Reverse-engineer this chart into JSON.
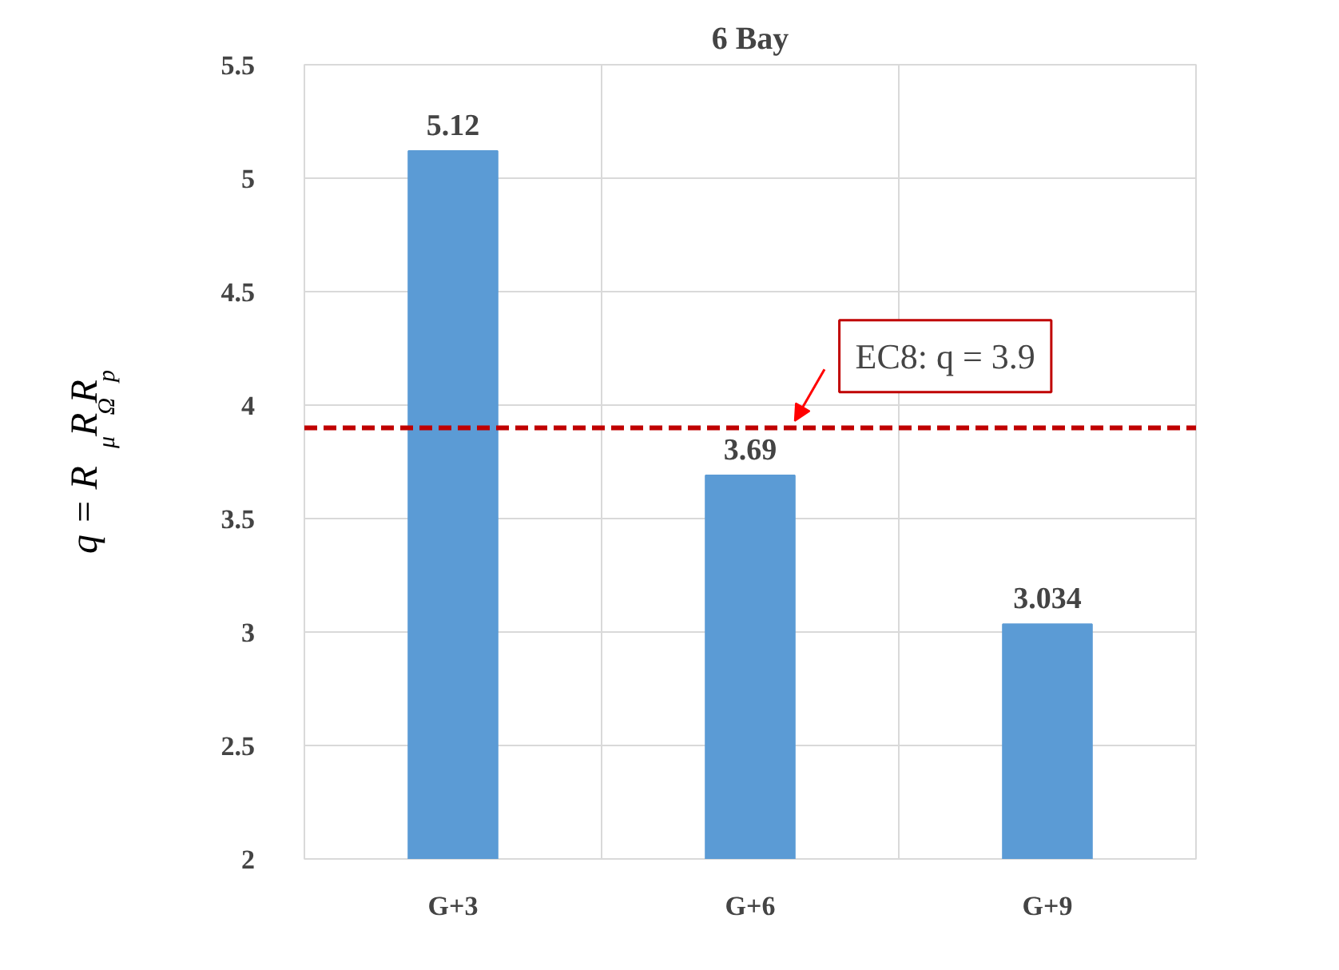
{
  "chart_data": {
    "type": "bar",
    "title": "6 Bay",
    "ylabel": "q = R$_{μ}$R$_{Ω}$R$_{p}$",
    "categories": [
      "G+3",
      "G+6",
      "G+9"
    ],
    "values": [
      5.12,
      3.69,
      3.034
    ],
    "color": "#5b9bd5",
    "ylim": [
      2,
      5.5
    ],
    "yticks": [
      2,
      2.5,
      3,
      3.5,
      4,
      4.5,
      5,
      5.5
    ],
    "grid": true,
    "data_labels": true,
    "ref_lines": [
      {
        "axis": "y",
        "value": 3.9,
        "label": "EC8: q = 3.9",
        "color": "#c00000",
        "line_style": "dashed"
      }
    ]
  }
}
